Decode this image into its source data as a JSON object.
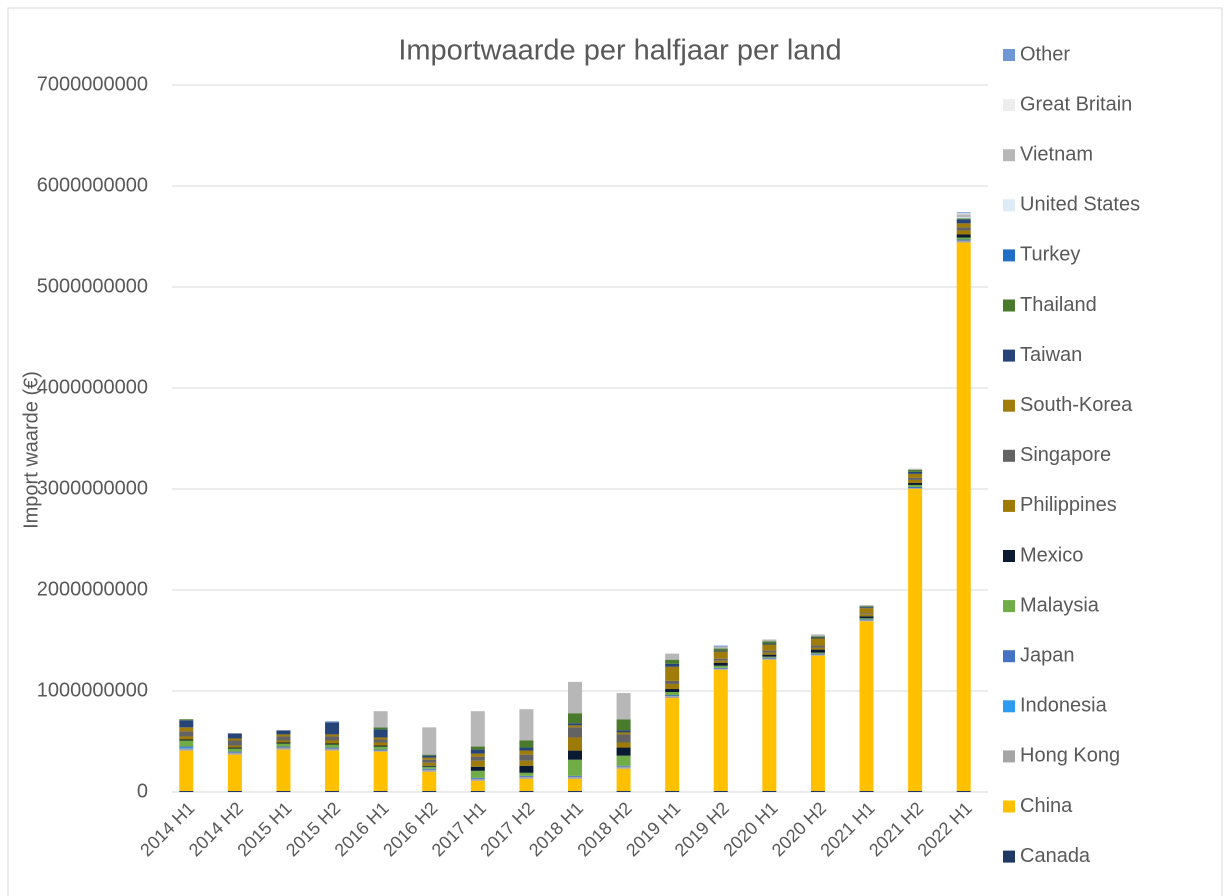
{
  "chart_data": {
    "type": "stacked_bar",
    "title": "Importwaarde per halfjaar per land",
    "y_label": "Import waarde (€)",
    "categories": [
      "2014 H1",
      "2014 H2",
      "2015 H1",
      "2015 H2",
      "2016 H1",
      "2016 H2",
      "2017 H1",
      "2017 H2",
      "2018 H1",
      "2018 H2",
      "2019 H1",
      "2019 H2",
      "2020 H1",
      "2020 H2",
      "2021 H1",
      "2021 H2",
      "2022 H1"
    ],
    "ylim": [
      0,
      7000000000
    ],
    "yticks": [
      0,
      1000000000,
      2000000000,
      3000000000,
      4000000000,
      5000000000,
      6000000000,
      7000000000
    ],
    "grid": true,
    "legend": "right",
    "series": [
      {
        "name": "Canada",
        "color": "#1f3864",
        "values": [
          10000000,
          10000000,
          10000000,
          10000000,
          10000000,
          10000000,
          10000000,
          10000000,
          10000000,
          10000000,
          10000000,
          10000000,
          10000000,
          10000000,
          10000000,
          10000000,
          10000000
        ]
      },
      {
        "name": "China",
        "color": "#ffc000",
        "values": [
          400000000,
          360000000,
          410000000,
          400000000,
          390000000,
          190000000,
          100000000,
          120000000,
          120000000,
          220000000,
          920000000,
          1200000000,
          1300000000,
          1340000000,
          1680000000,
          2990000000,
          5430000000
        ]
      },
      {
        "name": "Hong Kong",
        "color": "#a5a5a5",
        "values": [
          20000000,
          20000000,
          20000000,
          20000000,
          10000000,
          20000000,
          20000000,
          20000000,
          20000000,
          20000000,
          20000000,
          10000000,
          10000000,
          10000000,
          10000000,
          10000000,
          20000000
        ]
      },
      {
        "name": "Indonesia",
        "color": "#2e9cf0",
        "values": [
          10000000,
          0,
          0,
          0,
          0,
          0,
          0,
          0,
          0,
          0,
          0,
          0,
          0,
          0,
          0,
          0,
          0
        ]
      },
      {
        "name": "Japan",
        "color": "#4472c4",
        "values": [
          10000000,
          10000000,
          10000000,
          10000000,
          10000000,
          10000000,
          10000000,
          10000000,
          10000000,
          10000000,
          10000000,
          10000000,
          10000000,
          10000000,
          10000000,
          10000000,
          10000000
        ]
      },
      {
        "name": "Malaysia",
        "color": "#70ad47",
        "values": [
          60000000,
          30000000,
          30000000,
          30000000,
          30000000,
          20000000,
          70000000,
          30000000,
          160000000,
          100000000,
          30000000,
          20000000,
          10000000,
          10000000,
          10000000,
          20000000,
          20000000
        ]
      },
      {
        "name": "Mexico",
        "color": "#0a1a33",
        "values": [
          10000000,
          10000000,
          10000000,
          10000000,
          10000000,
          10000000,
          40000000,
          70000000,
          90000000,
          80000000,
          30000000,
          30000000,
          20000000,
          30000000,
          20000000,
          20000000,
          30000000
        ]
      },
      {
        "name": "Philippines",
        "color": "#9e7a06",
        "values": [
          30000000,
          20000000,
          20000000,
          30000000,
          30000000,
          30000000,
          60000000,
          50000000,
          130000000,
          50000000,
          50000000,
          20000000,
          20000000,
          20000000,
          20000000,
          30000000,
          40000000
        ]
      },
      {
        "name": "Singapore",
        "color": "#636363",
        "values": [
          50000000,
          50000000,
          40000000,
          40000000,
          30000000,
          30000000,
          40000000,
          60000000,
          100000000,
          80000000,
          30000000,
          20000000,
          20000000,
          20000000,
          10000000,
          20000000,
          30000000
        ]
      },
      {
        "name": "South-Korea",
        "color": "#a07c0a",
        "values": [
          40000000,
          20000000,
          20000000,
          20000000,
          20000000,
          20000000,
          30000000,
          40000000,
          20000000,
          20000000,
          140000000,
          70000000,
          60000000,
          70000000,
          50000000,
          40000000,
          40000000
        ]
      },
      {
        "name": "Taiwan",
        "color": "#264478",
        "values": [
          70000000,
          50000000,
          40000000,
          120000000,
          80000000,
          20000000,
          40000000,
          30000000,
          20000000,
          20000000,
          30000000,
          10000000,
          10000000,
          10000000,
          10000000,
          20000000,
          40000000
        ]
      },
      {
        "name": "Thailand",
        "color": "#4a7a2c",
        "values": [
          10000000,
          0,
          0,
          0,
          20000000,
          10000000,
          30000000,
          70000000,
          100000000,
          110000000,
          40000000,
          20000000,
          20000000,
          10000000,
          10000000,
          20000000,
          10000000
        ]
      },
      {
        "name": "Turkey",
        "color": "#1f6fc6",
        "values": [
          0,
          0,
          0,
          0,
          0,
          0,
          0,
          0,
          0,
          0,
          0,
          0,
          0,
          0,
          0,
          0,
          0
        ]
      },
      {
        "name": "United States",
        "color": "#ddebf7",
        "values": [
          0,
          0,
          0,
          0,
          0,
          0,
          0,
          0,
          0,
          0,
          0,
          0,
          0,
          0,
          0,
          0,
          10000000
        ]
      },
      {
        "name": "Vietnam",
        "color": "#b7b7b7",
        "values": [
          0,
          0,
          0,
          0,
          160000000,
          270000000,
          350000000,
          310000000,
          310000000,
          260000000,
          60000000,
          20000000,
          20000000,
          20000000,
          10000000,
          10000000,
          30000000
        ]
      },
      {
        "name": "Great Britain",
        "color": "#ededed",
        "values": [
          0,
          0,
          0,
          0,
          0,
          0,
          0,
          0,
          0,
          0,
          0,
          0,
          0,
          0,
          0,
          10000000,
          10000000
        ]
      },
      {
        "name": "Other",
        "color": "#6f97d6",
        "values": [
          0,
          0,
          0,
          10000000,
          0,
          0,
          0,
          0,
          0,
          0,
          0,
          10000000,
          0,
          0,
          0,
          0,
          10000000
        ]
      }
    ]
  }
}
